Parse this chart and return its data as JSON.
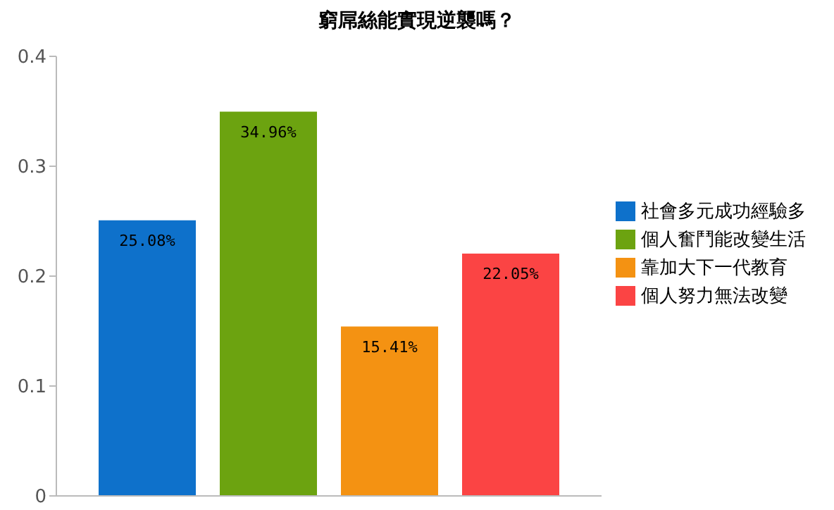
{
  "chart_data": {
    "type": "bar",
    "title": "窮屌絲能實現逆襲嗎？",
    "categories": [
      null
    ],
    "series": [
      {
        "name": "社會多元成功經驗多",
        "color": "#0e71cb",
        "values": [
          0.2508
        ],
        "value_labels": [
          "25.08%"
        ]
      },
      {
        "name": "個人奮鬥能改變生活",
        "color": "#6ca310",
        "values": [
          0.3496
        ],
        "value_labels": [
          "34.96%"
        ]
      },
      {
        "name": "靠加大下一代教育",
        "color": "#f49212",
        "values": [
          0.1541
        ],
        "value_labels": [
          "15.41%"
        ]
      },
      {
        "name": "個人努力無法改變",
        "color": "#fb4444",
        "values": [
          0.2205
        ],
        "value_labels": [
          "22.05%"
        ]
      }
    ],
    "ylim": [
      0,
      0.4
    ],
    "yticks": [
      0,
      0.1,
      0.2,
      0.3,
      0.4
    ],
    "grid": false,
    "legend": "right"
  }
}
